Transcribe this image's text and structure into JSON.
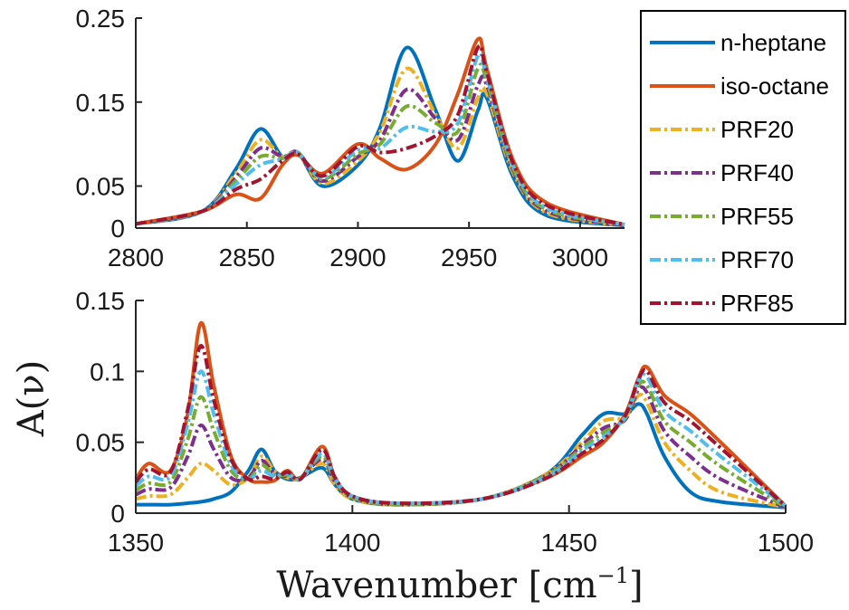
{
  "chart_data": [
    {
      "type": "line",
      "panel": "top",
      "xlim": [
        2800,
        3020
      ],
      "ylim": [
        0,
        0.25
      ],
      "xticks": [
        2800,
        2850,
        2900,
        2950,
        3000
      ],
      "yticks": [
        0,
        0.05,
        0.15,
        0.25
      ],
      "xtick_labels": [
        "2800",
        "2850",
        "2900",
        "2950",
        "3000"
      ],
      "ytick_labels": [
        "0",
        "0.05",
        "0.15",
        "0.25"
      ],
      "x": [
        2800,
        2830,
        2845,
        2856,
        2866,
        2873,
        2884,
        2900,
        2910,
        2922,
        2935,
        2945,
        2954,
        2958,
        2970,
        2985,
        3020
      ],
      "series": [
        {
          "name": "n-heptane",
          "color": "#0072BD",
          "dash": "solid",
          "values": [
            0.005,
            0.02,
            0.07,
            0.118,
            0.085,
            0.09,
            0.05,
            0.075,
            0.12,
            0.215,
            0.14,
            0.08,
            0.14,
            0.155,
            0.06,
            0.015,
            0.003
          ]
        },
        {
          "name": "iso-octane",
          "color": "#D95319",
          "dash": "solid",
          "values": [
            0.005,
            0.02,
            0.04,
            0.035,
            0.075,
            0.087,
            0.065,
            0.1,
            0.083,
            0.07,
            0.1,
            0.16,
            0.225,
            0.19,
            0.08,
            0.03,
            0.004
          ]
        },
        {
          "name": "PRF20",
          "color": "#EDB120",
          "dash": "dashdot",
          "values": [
            0.005,
            0.02,
            0.065,
            0.105,
            0.085,
            0.09,
            0.053,
            0.08,
            0.115,
            0.19,
            0.135,
            0.095,
            0.155,
            0.16,
            0.065,
            0.018,
            0.003
          ]
        },
        {
          "name": "PRF40",
          "color": "#7E2F8E",
          "dash": "dashdot",
          "values": [
            0.005,
            0.02,
            0.06,
            0.095,
            0.085,
            0.09,
            0.056,
            0.085,
            0.105,
            0.165,
            0.13,
            0.105,
            0.17,
            0.17,
            0.068,
            0.02,
            0.003
          ]
        },
        {
          "name": "PRF55",
          "color": "#77AC30",
          "dash": "dashdot",
          "values": [
            0.005,
            0.02,
            0.056,
            0.085,
            0.083,
            0.09,
            0.058,
            0.088,
            0.1,
            0.145,
            0.125,
            0.115,
            0.19,
            0.175,
            0.07,
            0.022,
            0.004
          ]
        },
        {
          "name": "PRF70",
          "color": "#4DBEEE",
          "dash": "dashdot",
          "values": [
            0.005,
            0.02,
            0.052,
            0.075,
            0.082,
            0.09,
            0.06,
            0.093,
            0.095,
            0.12,
            0.115,
            0.125,
            0.205,
            0.18,
            0.073,
            0.024,
            0.004
          ]
        },
        {
          "name": "PRF85",
          "color": "#A2142F",
          "dash": "dashdot",
          "values": [
            0.005,
            0.02,
            0.046,
            0.058,
            0.08,
            0.088,
            0.062,
            0.097,
            0.09,
            0.095,
            0.11,
            0.135,
            0.215,
            0.185,
            0.076,
            0.027,
            0.004
          ]
        }
      ]
    },
    {
      "type": "line",
      "panel": "bottom",
      "xlim": [
        1350,
        1500
      ],
      "ylim": [
        0,
        0.15
      ],
      "xticks": [
        1350,
        1400,
        1450,
        1500
      ],
      "yticks": [
        0,
        0.05,
        0.1,
        0.15
      ],
      "xtick_labels": [
        "1350",
        "1400",
        "1450",
        "1500"
      ],
      "ytick_labels": [
        "0",
        "0.05",
        "0.1",
        "0.15"
      ],
      "x": [
        1350,
        1353,
        1358,
        1362,
        1365,
        1368,
        1372,
        1376,
        1379,
        1382,
        1385,
        1388,
        1393,
        1396,
        1400,
        1410,
        1430,
        1445,
        1453,
        1458,
        1463,
        1466,
        1468,
        1472,
        1478,
        1485,
        1500
      ],
      "series": [
        {
          "name": "n-heptane",
          "color": "#0072BD",
          "dash": "solid",
          "values": [
            0.006,
            0.006,
            0.006,
            0.007,
            0.008,
            0.01,
            0.015,
            0.03,
            0.045,
            0.03,
            0.024,
            0.025,
            0.032,
            0.02,
            0.01,
            0.006,
            0.01,
            0.028,
            0.055,
            0.07,
            0.07,
            0.077,
            0.07,
            0.04,
            0.015,
            0.008,
            0.004
          ]
        },
        {
          "name": "iso-octane",
          "color": "#D95319",
          "dash": "solid",
          "values": [
            0.024,
            0.035,
            0.03,
            0.07,
            0.134,
            0.09,
            0.04,
            0.024,
            0.022,
            0.023,
            0.03,
            0.024,
            0.047,
            0.025,
            0.012,
            0.007,
            0.01,
            0.025,
            0.04,
            0.05,
            0.07,
            0.095,
            0.103,
            0.083,
            0.07,
            0.05,
            0.005
          ]
        },
        {
          "name": "PRF20",
          "color": "#EDB120",
          "dash": "dashdot",
          "values": [
            0.01,
            0.012,
            0.013,
            0.025,
            0.035,
            0.03,
            0.02,
            0.025,
            0.04,
            0.03,
            0.025,
            0.025,
            0.035,
            0.02,
            0.01,
            0.006,
            0.01,
            0.028,
            0.05,
            0.065,
            0.068,
            0.083,
            0.078,
            0.05,
            0.03,
            0.015,
            0.004
          ]
        },
        {
          "name": "PRF40",
          "color": "#7E2F8E",
          "dash": "dashdot",
          "values": [
            0.013,
            0.017,
            0.018,
            0.04,
            0.062,
            0.045,
            0.025,
            0.025,
            0.037,
            0.028,
            0.026,
            0.025,
            0.038,
            0.022,
            0.011,
            0.006,
            0.01,
            0.027,
            0.048,
            0.06,
            0.066,
            0.087,
            0.085,
            0.058,
            0.04,
            0.024,
            0.004
          ]
        },
        {
          "name": "PRF55",
          "color": "#77AC30",
          "dash": "dashdot",
          "values": [
            0.016,
            0.021,
            0.022,
            0.052,
            0.082,
            0.058,
            0.03,
            0.024,
            0.034,
            0.027,
            0.027,
            0.025,
            0.04,
            0.023,
            0.011,
            0.006,
            0.01,
            0.027,
            0.046,
            0.057,
            0.067,
            0.09,
            0.09,
            0.065,
            0.05,
            0.033,
            0.004
          ]
        },
        {
          "name": "PRF70",
          "color": "#4DBEEE",
          "dash": "dashdot",
          "values": [
            0.019,
            0.026,
            0.026,
            0.063,
            0.1,
            0.07,
            0.034,
            0.024,
            0.03,
            0.026,
            0.028,
            0.024,
            0.042,
            0.024,
            0.012,
            0.007,
            0.01,
            0.026,
            0.044,
            0.054,
            0.068,
            0.093,
            0.096,
            0.072,
            0.058,
            0.04,
            0.005
          ]
        },
        {
          "name": "PRF85",
          "color": "#A2142F",
          "dash": "dashdot",
          "values": [
            0.022,
            0.031,
            0.029,
            0.073,
            0.118,
            0.08,
            0.038,
            0.024,
            0.026,
            0.024,
            0.029,
            0.024,
            0.045,
            0.025,
            0.012,
            0.007,
            0.01,
            0.025,
            0.042,
            0.052,
            0.069,
            0.094,
            0.1,
            0.078,
            0.065,
            0.046,
            0.005
          ]
        }
      ]
    }
  ],
  "legend": {
    "placement": "top-right",
    "entries": [
      "n-heptane",
      "iso-octane",
      "PRF20",
      "PRF40",
      "PRF55",
      "PRF70",
      "PRF85"
    ]
  },
  "ylabel": "A(ν)",
  "xlabel": "Wavenumber [cm⁻¹]",
  "xlabel_main": "Wavenumber [cm",
  "xlabel_exp": "−1",
  "xlabel_close": "]"
}
